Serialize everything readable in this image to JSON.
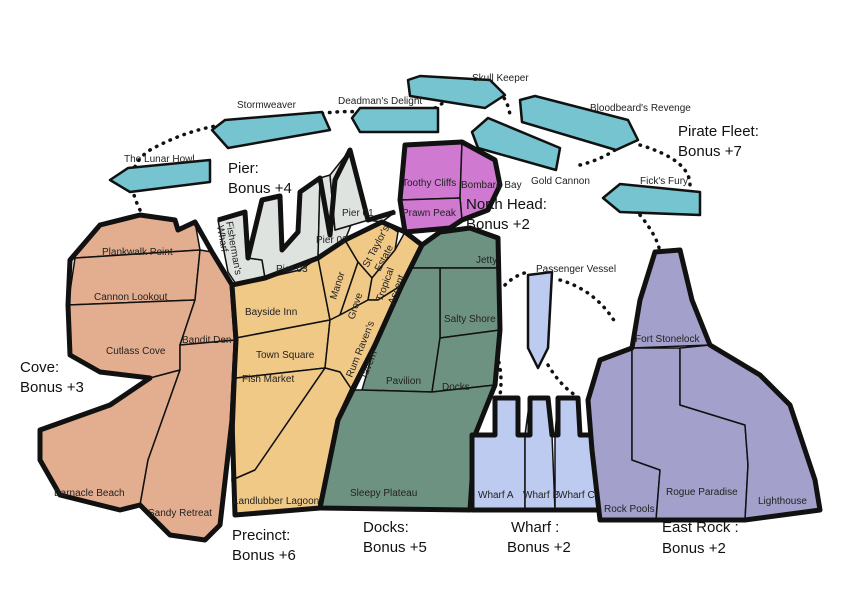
{
  "regions": {
    "cove": {
      "name": "Cove:",
      "bonus": "Bonus +3",
      "color": "#e3ae8f"
    },
    "precinct": {
      "name": "Precinct:",
      "bonus": "Bonus +6",
      "color": "#f0c987"
    },
    "docks": {
      "name": "Docks:",
      "bonus": "Bonus +5",
      "color": "#6e9282"
    },
    "wharf": {
      "name": "Wharf :",
      "bonus": "Bonus +2",
      "color": "#bccbef"
    },
    "east_rock": {
      "name": "East Rock :",
      "bonus": "Bonus +2",
      "color": "#a3a0cb"
    },
    "pier": {
      "name": "Pier:",
      "bonus": "Bonus +4",
      "color": "#dfe3df"
    },
    "north_head": {
      "name": "North Head:",
      "bonus": "Bonus +2",
      "color": "#cf7ad0"
    },
    "pirate_fleet": {
      "name": "Pirate Fleet:",
      "bonus": "Bonus +7",
      "color": "#76c4cf"
    }
  },
  "territories": {
    "plankwalk_point": "Plankwalk Point",
    "cannon_lookout": "Cannon Lookout",
    "cutlass_cove": "Cutlass Cove",
    "bandit_den": "Bandit Den",
    "barnacle_beach": "Barnacle Beach",
    "sandy_retreat": "Sandy Retreat",
    "bayside_inn": "Bayside Inn",
    "town_square": "Town Square",
    "fish_market": "Fish Market",
    "manor": "Manor",
    "grove": "Grove",
    "st_taylors_estate_1": "St Taylor's",
    "st_taylors_estate_2": "Estate",
    "tropical_ascent_1": "Tropical",
    "tropical_ascent_2": "Ascent",
    "rum_ravens_tavern_1": "Rum Raven's",
    "rum_ravens_tavern_2": "Tavern",
    "landlubber_lagoon": "Landlubber Lagoon",
    "fishermans_wharf_1": "Fisherman's",
    "fishermans_wharf_2": "Wharf",
    "pier_01": "Pier 01",
    "pier_02": "Pier 02",
    "pier_03": "Pier 03",
    "toothy_cliffs": "Toothy Cliffs",
    "bombard_bay": "Bombard Bay",
    "prawn_peak": "Prawn Peak",
    "jetty": "Jetty",
    "salty_shore": "Salty Shore",
    "pavilion": "Pavilion",
    "docks": "Docks",
    "sleepy_plateau": "Sleepy Plateau",
    "passenger_vessel": "Passenger Vessel",
    "wharf_a": "Wharf A",
    "wharf_b": "Wharf B",
    "wharf_c": "Wharf C",
    "fort_stonelock": "Fort Stonelock",
    "rock_pools": "Rock Pools",
    "rogue_paradise": "Rogue Paradise",
    "lighthouse": "Lighthouse",
    "the_lunar_howl": "The Lunar Howl",
    "stormweaver": "Stormweaver",
    "deadmans_delight": "Deadman's Delight",
    "skull_keeper": "Skull Keeper",
    "bloodbeards_revenge": "Bloodbeard's Revenge",
    "gold_cannon": "Gold Cannon",
    "ficks_fury": "Fick's Fury"
  }
}
